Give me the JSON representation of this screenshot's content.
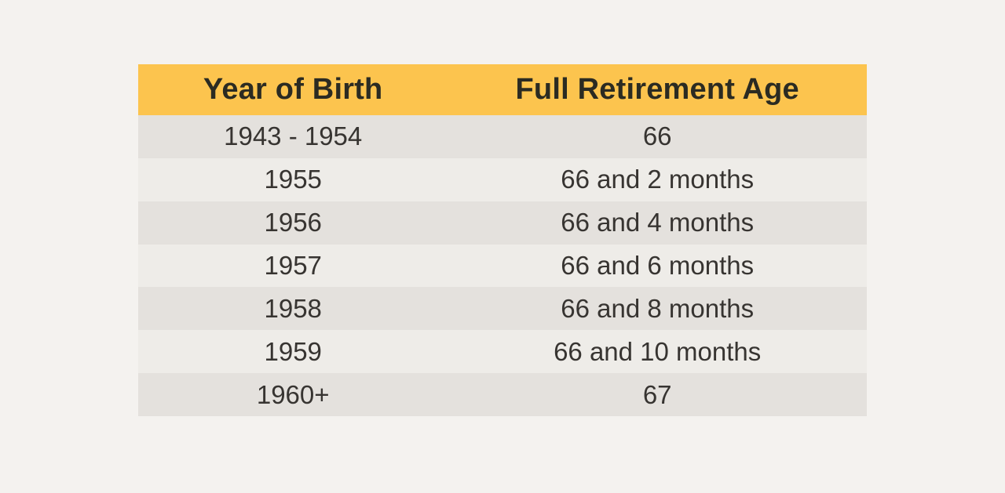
{
  "colors": {
    "page-bg": "#f4f2ef",
    "header-bg": "#fcc44e",
    "row-dark": "#e4e1dd",
    "row-light": "#eeece8",
    "header-text": "#2b2b22",
    "body-text": "#373431"
  },
  "table": {
    "headers": [
      "Year of Birth",
      "Full Retirement Age"
    ],
    "rows": [
      {
        "year": "1943 - 1954",
        "age": "66"
      },
      {
        "year": "1955",
        "age": "66 and 2 months"
      },
      {
        "year": "1956",
        "age": "66 and 4 months"
      },
      {
        "year": "1957",
        "age": "66 and 6 months"
      },
      {
        "year": "1958",
        "age": "66 and 8 months"
      },
      {
        "year": "1959",
        "age": "66 and 10 months"
      },
      {
        "year": "1960+",
        "age": "67"
      }
    ]
  },
  "chart_data": {
    "type": "table",
    "title": "",
    "columns": [
      "Year of Birth",
      "Full Retirement Age"
    ],
    "rows": [
      [
        "1943 - 1954",
        "66"
      ],
      [
        "1955",
        "66 and 2 months"
      ],
      [
        "1956",
        "66 and 4 months"
      ],
      [
        "1957",
        "66 and 6 months"
      ],
      [
        "1958",
        "66 and 8 months"
      ],
      [
        "1959",
        "66 and 10 months"
      ],
      [
        "1960+",
        "67"
      ]
    ],
    "layout": {
      "header_background": "#fcc44e",
      "row_stripe_colors": [
        "#e4e1dd",
        "#eeece8"
      ],
      "page_background": "#f4f2ef",
      "gridlines": false,
      "text_alignment": "center"
    }
  }
}
